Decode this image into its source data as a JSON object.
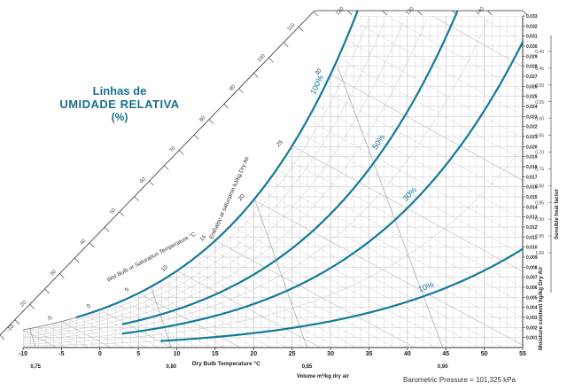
{
  "title": {
    "line1": "Linhas de",
    "line2": "UMIDADE RELATIVA",
    "line3": "(%)"
  },
  "footer": "Barometric Pressure = 101,325 kPa",
  "colors": {
    "rh_curve": "#137a9a",
    "grid": "#b9b9b9",
    "axis": "#333333",
    "title": "#1a6f8f"
  },
  "chart_data": {
    "type": "line",
    "title": "Linhas de UMIDADE RELATIVA (%)",
    "xlabel": "Dry Bulb Temperature °C",
    "ylabel": "Moisture content kg/kg Dry Air",
    "xlim": [
      -10,
      55
    ],
    "ylim": [
      0,
      0.033
    ],
    "x_ticks": [
      "-10",
      "-5",
      "0",
      "5",
      "10",
      "15",
      "20",
      "25",
      "30",
      "35",
      "40",
      "45",
      "50",
      "55"
    ],
    "y_ticks": [
      "0,001",
      "0,002",
      "0,003",
      "0,004",
      "0,005",
      "0,006",
      "0,007",
      "0,008",
      "0,009",
      "0,010",
      "0,011",
      "0,012",
      "0,013",
      "0,014",
      "0,015",
      "0,016",
      "0,017",
      "0,018",
      "0,019",
      "0,020",
      "0,021",
      "0,022",
      "0,023",
      "0,024",
      "0,025",
      "0,026",
      "0,027",
      "0,028",
      "0,029",
      "0,030",
      "0,031",
      "0,032",
      "0,033"
    ],
    "volume_ticks": [
      "0,75",
      "0,80",
      "0,85",
      "0,90"
    ],
    "volume_label": "Volume m³/kg dry air",
    "enthalpy_label": "Enthalpy at saturation kJ/kg Dry Air",
    "enthalpy_ticks": [
      "10",
      "15",
      "20",
      "25",
      "30",
      "35",
      "40",
      "45",
      "50",
      "55",
      "60",
      "65",
      "70",
      "75",
      "80",
      "85",
      "90",
      "95",
      "100",
      "105",
      "110",
      "115",
      "120",
      "125",
      "130",
      "135",
      "140",
      "145"
    ],
    "wetbulb_label": "Wet Bulb or Saturation Temperature °C",
    "wetbulb_ticks": [
      "-10",
      "-5",
      "0",
      "5",
      "10",
      "15",
      "20",
      "25",
      "30",
      "35",
      "40"
    ],
    "shf_label": "Sensible heat factor",
    "shf_ticks": [
      "0,40",
      "0,45",
      "0,50",
      "0,55",
      "0,60",
      "0,65",
      "0,70",
      "0,75",
      "0,80",
      "0,85",
      "0,90",
      "0,95",
      "1,00"
    ],
    "series": [
      {
        "name": "100%",
        "rh": 1.0
      },
      {
        "name": "50%",
        "rh": 0.5
      },
      {
        "name": "30%",
        "rh": 0.3
      },
      {
        "name": "10%",
        "rh": 0.1
      }
    ]
  }
}
